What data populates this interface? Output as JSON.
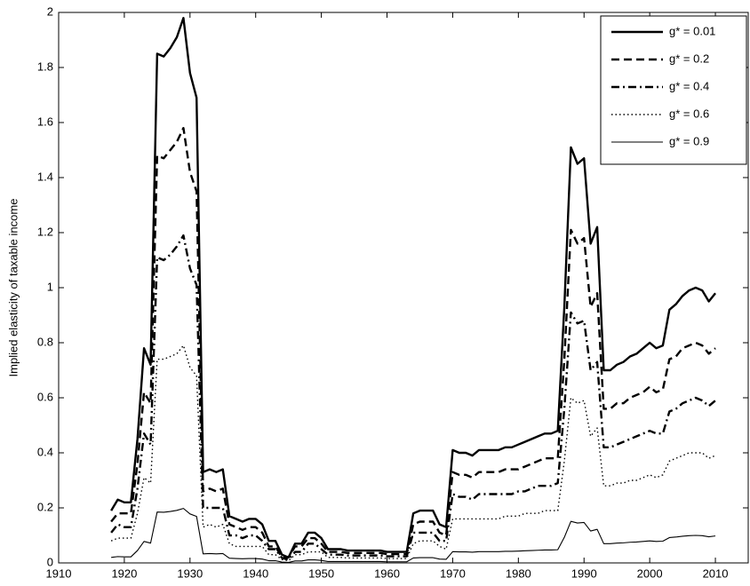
{
  "chart_data": {
    "type": "line",
    "ylabel": "Implied elasticity of taxable income",
    "x": [
      1918,
      1919,
      1920,
      1921,
      1922,
      1923,
      1924,
      1925,
      1926,
      1927,
      1928,
      1929,
      1930,
      1931,
      1932,
      1933,
      1934,
      1935,
      1936,
      1937,
      1938,
      1939,
      1940,
      1941,
      1942,
      1943,
      1944,
      1945,
      1946,
      1947,
      1948,
      1949,
      1950,
      1951,
      1952,
      1953,
      1954,
      1955,
      1956,
      1957,
      1958,
      1959,
      1960,
      1961,
      1962,
      1963,
      1964,
      1965,
      1966,
      1967,
      1968,
      1969,
      1970,
      1971,
      1972,
      1973,
      1974,
      1975,
      1976,
      1977,
      1978,
      1979,
      1980,
      1981,
      1982,
      1983,
      1984,
      1985,
      1986,
      1987,
      1988,
      1989,
      1990,
      1991,
      1992,
      1993,
      1994,
      1995,
      1996,
      1997,
      1998,
      1999,
      2000,
      2001,
      2002,
      2003,
      2004,
      2005,
      2006,
      2007,
      2008,
      2009,
      2010
    ],
    "series": [
      {
        "name": "g* = 0.01",
        "color": "#000000",
        "dash": "solid",
        "width": 2.4,
        "values": [
          0.19,
          0.23,
          0.22,
          0.22,
          0.45,
          0.78,
          0.72,
          1.85,
          1.84,
          1.87,
          1.91,
          1.98,
          1.78,
          1.69,
          0.33,
          0.34,
          0.33,
          0.34,
          0.17,
          0.16,
          0.15,
          0.16,
          0.16,
          0.14,
          0.08,
          0.08,
          0.03,
          0.02,
          0.07,
          0.07,
          0.11,
          0.11,
          0.09,
          0.05,
          0.05,
          0.05,
          0.045,
          0.045,
          0.045,
          0.045,
          0.045,
          0.045,
          0.04,
          0.04,
          0.04,
          0.04,
          0.18,
          0.19,
          0.19,
          0.19,
          0.14,
          0.13,
          0.41,
          0.4,
          0.4,
          0.39,
          0.41,
          0.41,
          0.41,
          0.41,
          0.42,
          0.42,
          0.43,
          0.44,
          0.45,
          0.46,
          0.47,
          0.47,
          0.48,
          0.93,
          1.51,
          1.45,
          1.47,
          1.16,
          1.22,
          0.7,
          0.7,
          0.72,
          0.73,
          0.75,
          0.76,
          0.78,
          0.8,
          0.78,
          0.79,
          0.92,
          0.94,
          0.97,
          0.99,
          1.0,
          0.99,
          0.95,
          0.98
        ]
      },
      {
        "name": "g* = 0.2",
        "color": "#000000",
        "dash": "dashed",
        "width": 2.4,
        "values": [
          0.15,
          0.18,
          0.18,
          0.18,
          0.36,
          0.62,
          0.58,
          1.48,
          1.47,
          1.5,
          1.53,
          1.58,
          1.42,
          1.35,
          0.26,
          0.27,
          0.26,
          0.27,
          0.14,
          0.13,
          0.12,
          0.13,
          0.13,
          0.11,
          0.06,
          0.06,
          0.02,
          0.02,
          0.06,
          0.06,
          0.09,
          0.09,
          0.07,
          0.04,
          0.04,
          0.04,
          0.036,
          0.036,
          0.036,
          0.036,
          0.036,
          0.036,
          0.032,
          0.032,
          0.032,
          0.032,
          0.14,
          0.15,
          0.15,
          0.15,
          0.11,
          0.1,
          0.33,
          0.32,
          0.32,
          0.31,
          0.33,
          0.33,
          0.33,
          0.33,
          0.34,
          0.34,
          0.34,
          0.35,
          0.36,
          0.37,
          0.38,
          0.38,
          0.38,
          0.74,
          1.21,
          1.16,
          1.18,
          0.93,
          0.98,
          0.56,
          0.56,
          0.58,
          0.58,
          0.6,
          0.61,
          0.62,
          0.64,
          0.62,
          0.63,
          0.74,
          0.75,
          0.78,
          0.79,
          0.8,
          0.79,
          0.76,
          0.78
        ]
      },
      {
        "name": "g* = 0.4",
        "color": "#000000",
        "dash": "dashdot",
        "width": 2.4,
        "values": [
          0.11,
          0.14,
          0.13,
          0.13,
          0.27,
          0.47,
          0.43,
          1.11,
          1.1,
          1.12,
          1.15,
          1.19,
          1.07,
          1.01,
          0.2,
          0.2,
          0.2,
          0.2,
          0.1,
          0.1,
          0.09,
          0.1,
          0.1,
          0.08,
          0.05,
          0.05,
          0.018,
          0.012,
          0.04,
          0.04,
          0.07,
          0.07,
          0.05,
          0.03,
          0.03,
          0.03,
          0.027,
          0.027,
          0.027,
          0.027,
          0.027,
          0.027,
          0.024,
          0.024,
          0.024,
          0.024,
          0.11,
          0.11,
          0.11,
          0.11,
          0.08,
          0.08,
          0.25,
          0.24,
          0.24,
          0.23,
          0.25,
          0.25,
          0.25,
          0.25,
          0.25,
          0.25,
          0.26,
          0.26,
          0.27,
          0.28,
          0.28,
          0.28,
          0.29,
          0.56,
          0.91,
          0.87,
          0.88,
          0.7,
          0.73,
          0.42,
          0.42,
          0.43,
          0.44,
          0.45,
          0.46,
          0.47,
          0.48,
          0.47,
          0.47,
          0.55,
          0.56,
          0.58,
          0.59,
          0.6,
          0.59,
          0.57,
          0.59
        ]
      },
      {
        "name": "g* = 0.6",
        "color": "#000000",
        "dash": "dotted",
        "width": 1.4,
        "values": [
          0.08,
          0.09,
          0.09,
          0.09,
          0.18,
          0.31,
          0.29,
          0.74,
          0.74,
          0.75,
          0.76,
          0.79,
          0.71,
          0.68,
          0.13,
          0.14,
          0.13,
          0.14,
          0.07,
          0.06,
          0.06,
          0.06,
          0.06,
          0.06,
          0.03,
          0.03,
          0.012,
          0.008,
          0.03,
          0.03,
          0.04,
          0.04,
          0.04,
          0.02,
          0.02,
          0.02,
          0.018,
          0.018,
          0.018,
          0.018,
          0.018,
          0.018,
          0.016,
          0.016,
          0.016,
          0.016,
          0.07,
          0.08,
          0.08,
          0.08,
          0.06,
          0.05,
          0.16,
          0.16,
          0.16,
          0.16,
          0.16,
          0.16,
          0.16,
          0.16,
          0.17,
          0.17,
          0.17,
          0.18,
          0.18,
          0.18,
          0.19,
          0.19,
          0.19,
          0.37,
          0.6,
          0.58,
          0.59,
          0.46,
          0.49,
          0.28,
          0.28,
          0.29,
          0.29,
          0.3,
          0.3,
          0.31,
          0.32,
          0.31,
          0.32,
          0.37,
          0.38,
          0.39,
          0.4,
          0.4,
          0.4,
          0.38,
          0.39
        ]
      },
      {
        "name": "g* = 0.9",
        "color": "#000000",
        "dash": "solid",
        "width": 1.1,
        "values": [
          0.02,
          0.023,
          0.022,
          0.022,
          0.045,
          0.078,
          0.072,
          0.185,
          0.184,
          0.187,
          0.191,
          0.198,
          0.178,
          0.169,
          0.033,
          0.034,
          0.033,
          0.034,
          0.017,
          0.016,
          0.015,
          0.016,
          0.016,
          0.014,
          0.008,
          0.008,
          0.003,
          0.002,
          0.007,
          0.007,
          0.011,
          0.011,
          0.009,
          0.005,
          0.005,
          0.005,
          0.005,
          0.005,
          0.005,
          0.005,
          0.005,
          0.005,
          0.004,
          0.004,
          0.004,
          0.004,
          0.018,
          0.019,
          0.019,
          0.019,
          0.014,
          0.013,
          0.041,
          0.04,
          0.04,
          0.039,
          0.041,
          0.041,
          0.041,
          0.041,
          0.042,
          0.042,
          0.043,
          0.044,
          0.045,
          0.046,
          0.047,
          0.047,
          0.048,
          0.093,
          0.151,
          0.145,
          0.147,
          0.116,
          0.122,
          0.07,
          0.07,
          0.072,
          0.073,
          0.075,
          0.076,
          0.078,
          0.08,
          0.078,
          0.079,
          0.092,
          0.094,
          0.097,
          0.099,
          0.1,
          0.099,
          0.095,
          0.098
        ]
      }
    ],
    "xlim": [
      1910,
      2015
    ],
    "xticks": [
      1910,
      1920,
      1930,
      1940,
      1950,
      1960,
      1970,
      1980,
      1990,
      2000,
      2010
    ],
    "ylim": [
      0,
      2
    ],
    "yticks": [
      0,
      0.2,
      0.4,
      0.6,
      0.8,
      1,
      1.2,
      1.4,
      1.6,
      1.8,
      2
    ],
    "grid": false,
    "legend": "upper right"
  }
}
